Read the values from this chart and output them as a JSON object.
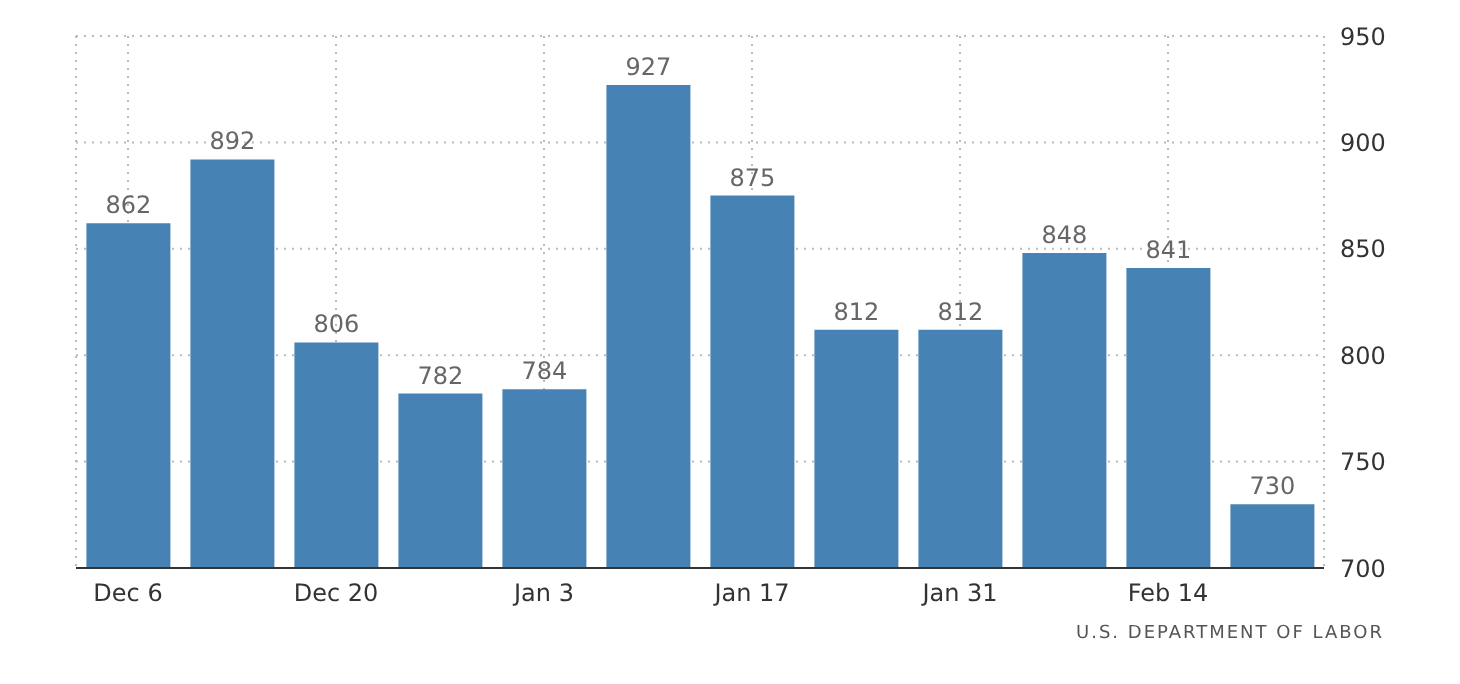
{
  "chart_data": {
    "type": "bar",
    "categories": [
      "Dec 6",
      null,
      "Dec 20",
      null,
      "Jan 3",
      null,
      "Jan 17",
      null,
      "Jan 31",
      null,
      "Feb 14",
      null
    ],
    "values": [
      862,
      892,
      806,
      782,
      784,
      927,
      875,
      812,
      812,
      848,
      841,
      730
    ],
    "color": "#4682b4",
    "ylim": [
      700,
      950
    ],
    "yticks": [
      700,
      750,
      800,
      850,
      900,
      950
    ],
    "grid": true,
    "data_labels": true,
    "annotations": [
      "U.S. DEPARTMENT OF LABOR"
    ]
  }
}
